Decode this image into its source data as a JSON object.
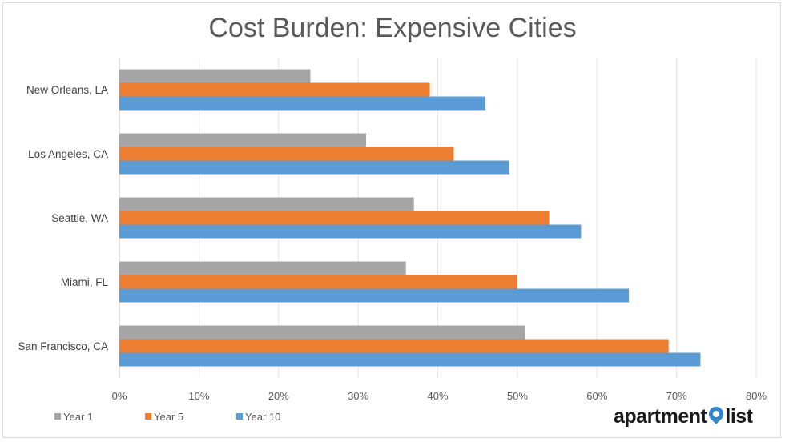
{
  "chart_data": {
    "type": "bar",
    "orientation": "horizontal",
    "title": "Cost Burden: Expensive Cities",
    "categories": [
      "New Orleans, LA",
      "Los Angeles, CA",
      "Seattle, WA",
      "Miami, FL",
      "San Francisco, CA"
    ],
    "series": [
      {
        "name": "Year 1",
        "color": "#a5a5a5",
        "values": [
          0.24,
          0.31,
          0.37,
          0.36,
          0.51
        ]
      },
      {
        "name": "Year 5",
        "color": "#ed7d31",
        "values": [
          0.39,
          0.42,
          0.54,
          0.5,
          0.69
        ]
      },
      {
        "name": "Year 10",
        "color": "#5b9bd5",
        "values": [
          0.46,
          0.49,
          0.58,
          0.64,
          0.73
        ]
      }
    ],
    "xlim": [
      0,
      0.8
    ],
    "xticks": [
      "0%",
      "10%",
      "20%",
      "30%",
      "40%",
      "50%",
      "60%",
      "70%",
      "80%"
    ],
    "grid": true,
    "legend_position": "bottom-left"
  },
  "branding": {
    "logo_text_left": "apartment",
    "logo_text_right": "list",
    "logo_pin_color": "#2f86c8"
  }
}
